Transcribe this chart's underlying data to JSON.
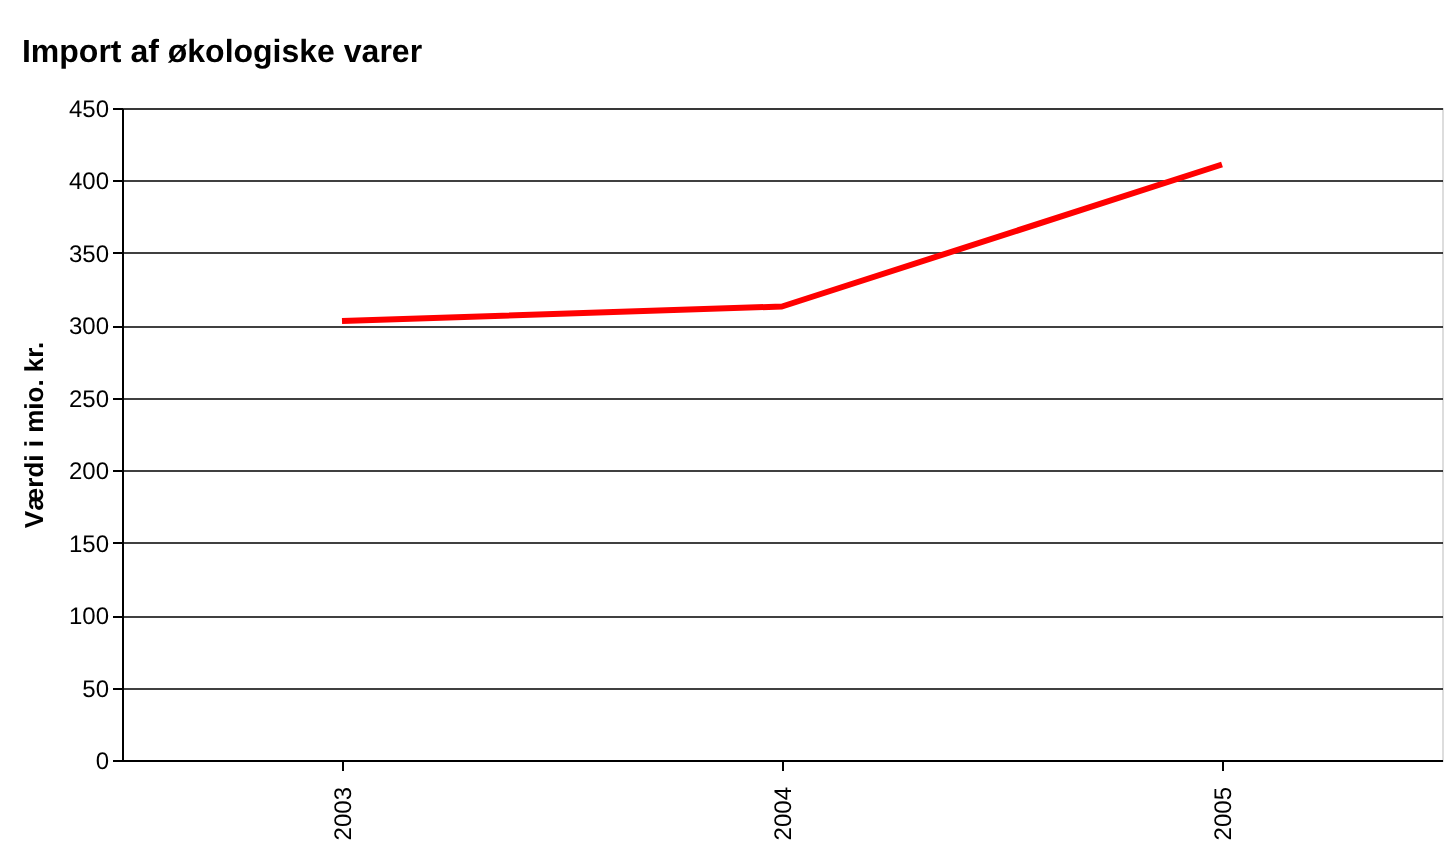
{
  "chart_data": {
    "type": "line",
    "title": "Import af økologiske varer",
    "ylabel": "Værdi i mio. kr.",
    "categories": [
      "2003",
      "2004",
      "2005"
    ],
    "series": [
      {
        "color": "#ff0000",
        "values": [
          303,
          313,
          411
        ]
      }
    ],
    "ylim": [
      0,
      450
    ],
    "yticks": [
      0,
      50,
      100,
      150,
      200,
      250,
      300,
      350,
      400,
      450
    ],
    "grid": "y",
    "marker": "none",
    "line_style": "solid",
    "legend": false
  }
}
